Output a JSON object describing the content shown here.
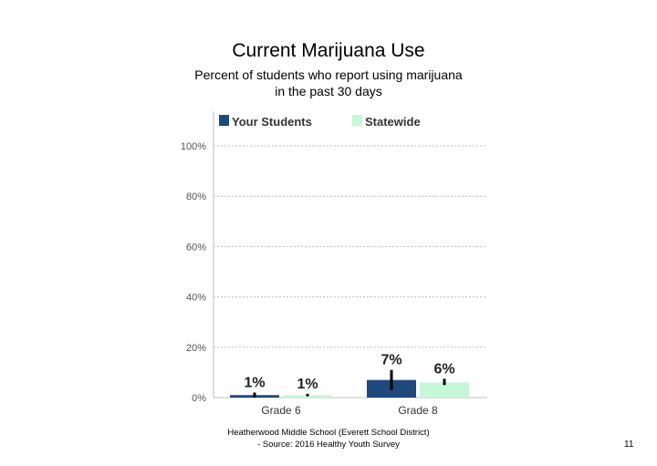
{
  "title": "Current Marijuana Use",
  "subtitle_lines": [
    "Percent of students who report using marijuana",
    "in the past 30 days"
  ],
  "footer_lines": [
    "Heatherwood Middle School (Everett School District)",
    "- Source: 2016 Healthy Youth Survey"
  ],
  "page_number": "11",
  "chart_data": {
    "type": "bar",
    "categories": [
      "Grade 6",
      "Grade 8"
    ],
    "series": [
      {
        "name": "Your Students",
        "values": [
          1,
          7
        ],
        "labels": [
          "1%",
          "7%"
        ],
        "error": [
          [
            0,
            2
          ],
          [
            3,
            11
          ]
        ],
        "color": "#1f497d"
      },
      {
        "name": "Statewide",
        "values": [
          1,
          6
        ],
        "labels": [
          "1%",
          "6%"
        ],
        "error": [
          [
            0.5,
            1.5
          ],
          [
            5,
            7.5
          ]
        ],
        "color": "#c6f7d9"
      }
    ],
    "ylim": [
      0,
      100
    ],
    "yticks": [
      0,
      20,
      40,
      60,
      80,
      100
    ],
    "ytick_labels": [
      "0%",
      "20%",
      "40%",
      "60%",
      "80%",
      "100%"
    ],
    "grid": true,
    "legend_position": "top"
  }
}
